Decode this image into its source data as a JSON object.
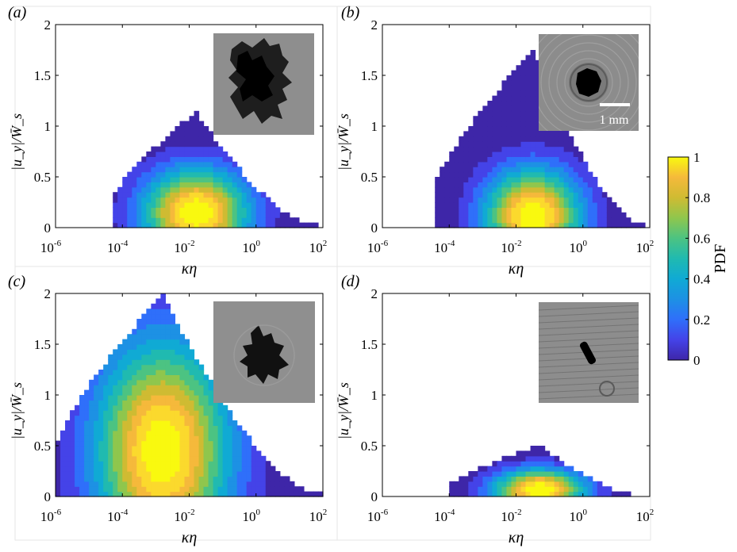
{
  "colorbar": {
    "label": "PDF",
    "ticks": [
      "0",
      "0.2",
      "0.4",
      "0.6",
      "0.8",
      "1"
    ],
    "colors": [
      "#3e26a8",
      "#4443e8",
      "#2f6ffa",
      "#1d91e4",
      "#10aad4",
      "#20bab0",
      "#4cc382",
      "#8fc64d",
      "#cfbb32",
      "#f5b93b",
      "#fbd92d",
      "#f9f90f"
    ]
  },
  "inset_scale_label": "1 mm",
  "chart_data": [
    {
      "type": "heatmap",
      "panel": "(a)",
      "xlabel": "κη",
      "ylabel": "|u_y|/W̄_s",
      "x_scale": "log",
      "xlim": [
        1e-06,
        100
      ],
      "ylim": [
        0,
        2
      ],
      "x_ticks": [
        "10",
        "10",
        "10",
        "10",
        "10"
      ],
      "x_tick_exps": [
        "-6",
        "-4",
        "-2",
        "0",
        "2"
      ],
      "y_ticks": [
        "0",
        "0.5",
        "1",
        "1.5",
        "2"
      ],
      "log10_x_extent": [
        -4.3,
        1.9
      ],
      "y_max": 1.15,
      "peak_log10_x": -1.8,
      "peak_y": 0.15,
      "spread_log10_x": 1.1,
      "spread_y": 0.3,
      "inset": "irregular dark aggregate (particle image)"
    },
    {
      "type": "heatmap",
      "panel": "(b)",
      "xlabel": "κη",
      "ylabel": "|u_y|/W̄_s",
      "x_scale": "log",
      "xlim": [
        1e-06,
        100
      ],
      "ylim": [
        0,
        2
      ],
      "x_ticks": [
        "10",
        "10",
        "10",
        "10",
        "10"
      ],
      "x_tick_exps": [
        "-6",
        "-4",
        "-2",
        "0",
        "2"
      ],
      "y_ticks": [
        "0",
        "0.5",
        "1",
        "1.5",
        "2"
      ],
      "log10_x_extent": [
        -4.4,
        1.9
      ],
      "y_max": 1.75,
      "peak_log10_x": -1.5,
      "peak_y": 0.12,
      "spread_log10_x": 1.0,
      "spread_y": 0.32,
      "inset": "dark round particle with 1 mm scale bar"
    },
    {
      "type": "heatmap",
      "panel": "(c)",
      "xlabel": "κη",
      "ylabel": "|u_y|/W̄_s",
      "x_scale": "log",
      "xlim": [
        1e-06,
        100
      ],
      "ylim": [
        0,
        2
      ],
      "x_ticks": [
        "10",
        "10",
        "10",
        "10",
        "10"
      ],
      "x_tick_exps": [
        "-6",
        "-4",
        "-2",
        "0",
        "2"
      ],
      "y_ticks": [
        "0",
        "0.5",
        "1",
        "1.5",
        "2"
      ],
      "log10_x_extent": [
        -6.0,
        2.0
      ],
      "y_max": 2.0,
      "peak_log10_x": -2.8,
      "peak_y": 0.45,
      "spread_log10_x": 1.4,
      "spread_y": 0.75,
      "inset": "dark branched aggregate (particle image)"
    },
    {
      "type": "heatmap",
      "panel": "(d)",
      "xlabel": "κη",
      "ylabel": "|u_y|/W̄_s",
      "x_scale": "log",
      "xlim": [
        1e-06,
        100
      ],
      "ylim": [
        0,
        2
      ],
      "x_ticks": [
        "10",
        "10",
        "10",
        "10",
        "10"
      ],
      "x_tick_exps": [
        "-6",
        "-4",
        "-2",
        "0",
        "2"
      ],
      "y_ticks": [
        "0",
        "0.5",
        "1",
        "1.5",
        "2"
      ],
      "log10_x_extent": [
        -4.0,
        1.9
      ],
      "y_max": 0.5,
      "peak_log10_x": -1.3,
      "peak_y": 0.07,
      "spread_log10_x": 0.95,
      "spread_y": 0.14,
      "inset": "elongated dark particle (particle image)"
    }
  ]
}
